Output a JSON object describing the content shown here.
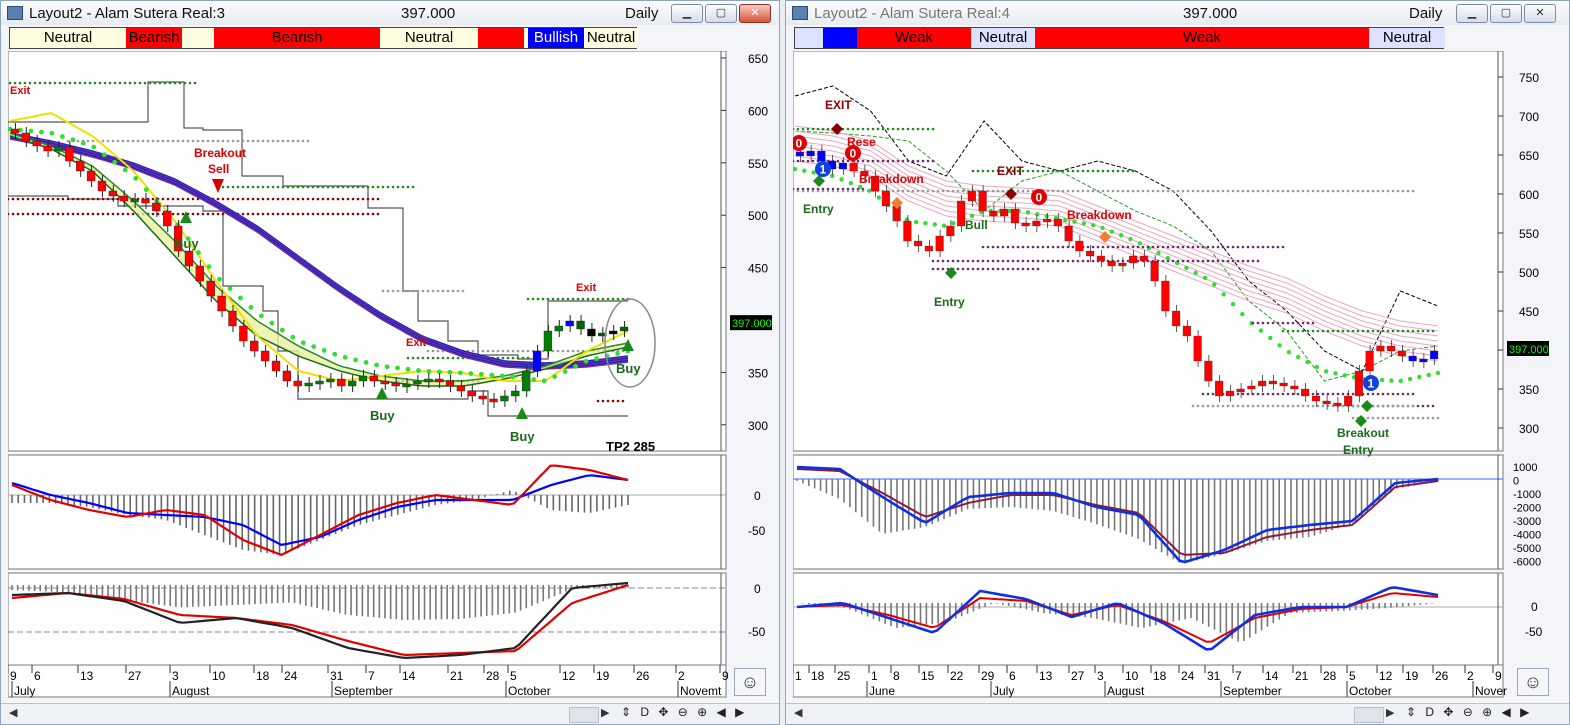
{
  "left": {
    "title": "Layout2 - Alam Sutera Real:3",
    "price": "397.000",
    "period": "Daily",
    "status": [
      {
        "label": "Neutral",
        "color": "#fffde0"
      },
      {
        "label": "Bearish",
        "color": "#ff0000"
      },
      {
        "label": "",
        "color": "#fffde0"
      },
      {
        "label": "Bearish",
        "color": "#ff0000"
      },
      {
        "label": "Neutral",
        "color": "#fffde0"
      },
      {
        "label": "",
        "color": "#ff0000"
      },
      {
        "label": "",
        "color": "#fffde0"
      },
      {
        "label": "Bullish",
        "color": "#0000ff"
      },
      {
        "label": "Neutral",
        "color": "#fffde0"
      }
    ],
    "price_axis": [
      "650",
      "600",
      "550",
      "500",
      "450",
      "400",
      "350",
      "300"
    ],
    "price_badge": "397.000",
    "ind1_axis": [
      "0",
      "-50"
    ],
    "ind2_axis": [
      "0",
      "-50"
    ],
    "annotations": {
      "exit1": "Exit",
      "breakout": "Breakout",
      "sell": "Sell",
      "buy1": "Buy",
      "exit2": "Exit",
      "buy2": "Buy",
      "buy3": "Buy",
      "exit3": "Exit",
      "buy4": "Buy",
      "tp": "TP2 285"
    },
    "date_ticks": [
      "9",
      "6",
      "13",
      "27",
      "3",
      "10",
      "18",
      "24",
      "31",
      "7",
      "14",
      "21",
      "28",
      "5",
      "12",
      "19",
      "26",
      "2",
      "9"
    ],
    "months": [
      "July",
      "August",
      "September",
      "October",
      "Novemt"
    ]
  },
  "right": {
    "title": "Layout2 - Alam Sutera Real:4",
    "price": "397.000",
    "period": "Daily",
    "status": [
      {
        "label": "",
        "color": "#dce3ff"
      },
      {
        "label": "",
        "color": "#0000ff"
      },
      {
        "label": "Weak",
        "color": "#ff0000"
      },
      {
        "label": "Neutral",
        "color": "#dce3ff"
      },
      {
        "label": "Weak",
        "color": "#ff0000"
      },
      {
        "label": "Neutral",
        "color": "#dce3ff"
      }
    ],
    "price_axis": [
      "750",
      "700",
      "650",
      "600",
      "550",
      "500",
      "450",
      "400",
      "350",
      "300"
    ],
    "price_badge": "397.000",
    "ind1_axis": [
      "1000",
      "0",
      "-1000",
      "-2000",
      "-3000",
      "-4000",
      "-5000",
      "-6000"
    ],
    "ind2_axis": [
      "0",
      "-50"
    ],
    "annotations": {
      "exit": "EXIT",
      "reset": "Rese",
      "breakdown1": "Breakdown",
      "entry1": "Entry",
      "exit2": "EXIT",
      "bull": "Bull",
      "breakdown2": "Breakdown",
      "entry2": "Entry",
      "breakout": "Breakout",
      "entry3": "Entry",
      "badge0": "0",
      "badge1": "1"
    },
    "date_ticks": [
      "1",
      "18",
      "25",
      "1",
      "8",
      "15",
      "22",
      "29",
      "6",
      "13",
      "27",
      "3",
      "10",
      "18",
      "24",
      "31",
      "7",
      "14",
      "21",
      "28",
      "5",
      "12",
      "19",
      "26",
      "2",
      "9"
    ],
    "months": [
      "June",
      "July",
      "August",
      "September",
      "October",
      "Nover"
    ]
  }
}
